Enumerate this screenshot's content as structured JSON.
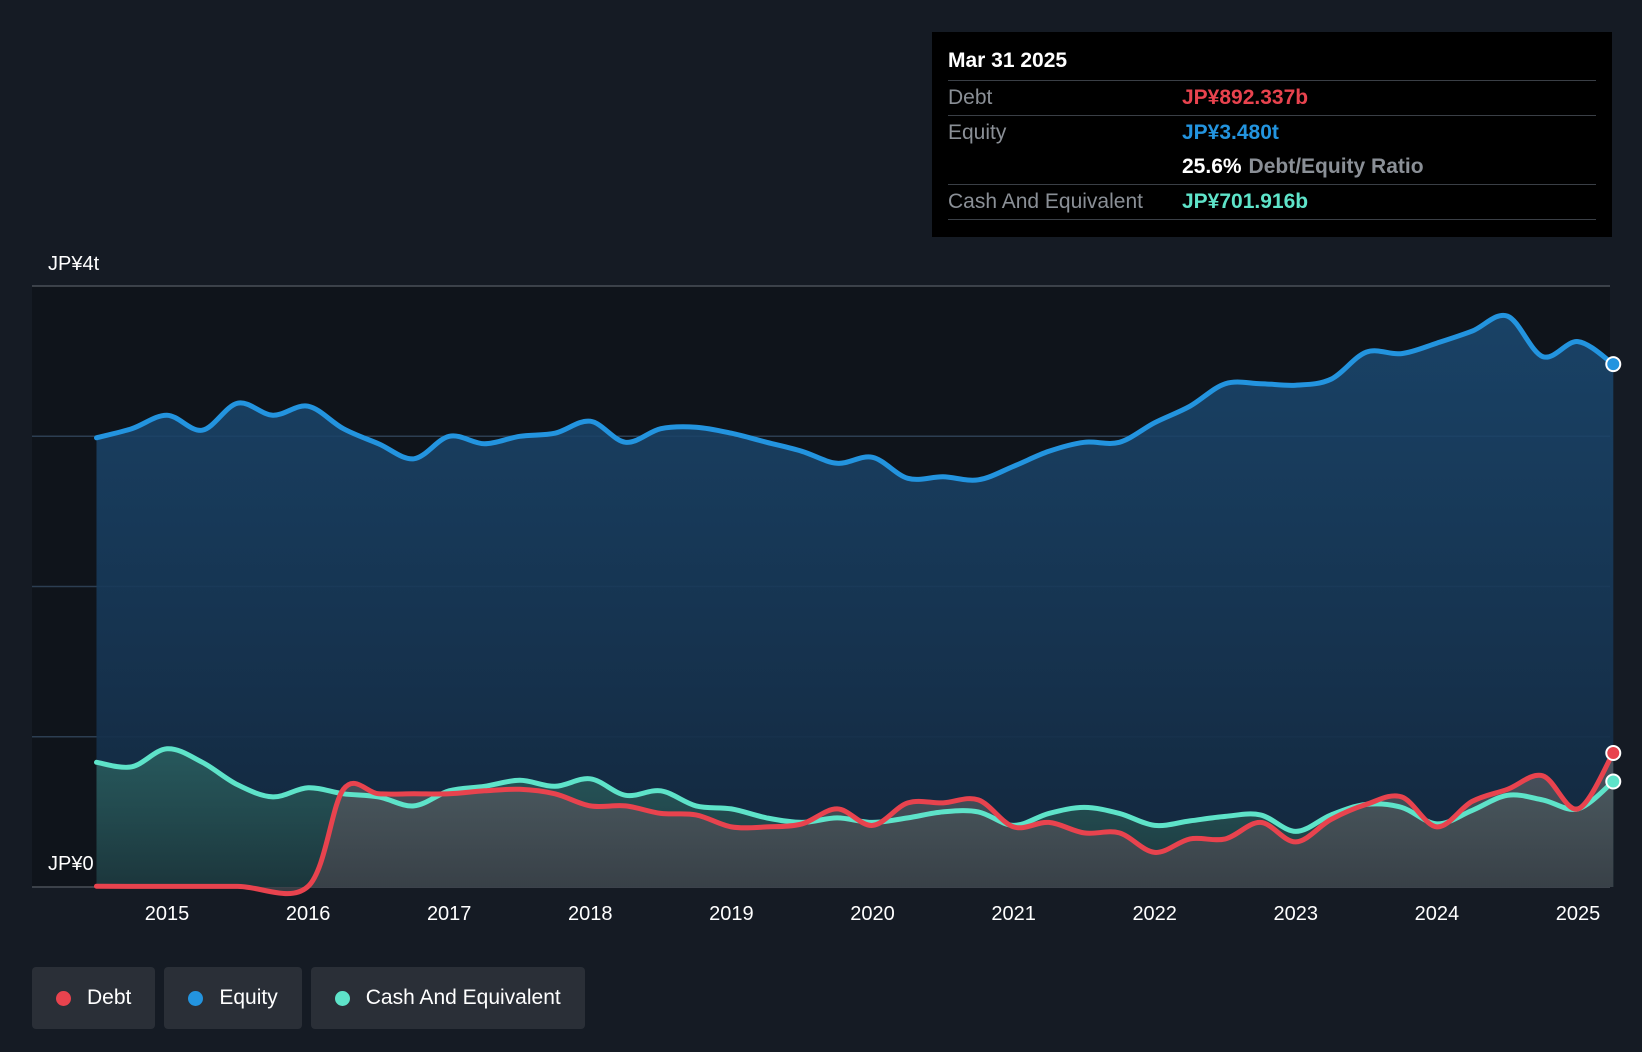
{
  "chart_data": {
    "type": "area",
    "y_axis": {
      "top_label": "JP¥4t",
      "bottom_label": "JP¥0",
      "ylim": [
        0,
        4000
      ],
      "unit": "JP¥b",
      "gridlines": [
        0,
        1000,
        2000,
        3000,
        4000
      ]
    },
    "x_axis": {
      "ticks": [
        "2015",
        "2016",
        "2017",
        "2018",
        "2019",
        "2020",
        "2021",
        "2022",
        "2023",
        "2024",
        "2025"
      ],
      "xlim": [
        2014.5,
        2025.25
      ]
    },
    "series": [
      {
        "name": "Debt",
        "color": "#e8434e",
        "points": [
          [
            2014.5,
            5
          ],
          [
            2015.0,
            4
          ],
          [
            2015.5,
            4
          ],
          [
            2016.0,
            4
          ],
          [
            2016.25,
            650
          ],
          [
            2016.5,
            620
          ],
          [
            2016.75,
            620
          ],
          [
            2017.0,
            620
          ],
          [
            2017.25,
            640
          ],
          [
            2017.5,
            650
          ],
          [
            2017.75,
            620
          ],
          [
            2018.0,
            540
          ],
          [
            2018.25,
            540
          ],
          [
            2018.5,
            490
          ],
          [
            2018.75,
            480
          ],
          [
            2019.0,
            400
          ],
          [
            2019.25,
            400
          ],
          [
            2019.5,
            420
          ],
          [
            2019.75,
            520
          ],
          [
            2020.0,
            410
          ],
          [
            2020.25,
            560
          ],
          [
            2020.5,
            560
          ],
          [
            2020.75,
            580
          ],
          [
            2021.0,
            400
          ],
          [
            2021.25,
            430
          ],
          [
            2021.5,
            360
          ],
          [
            2021.75,
            360
          ],
          [
            2022.0,
            230
          ],
          [
            2022.25,
            320
          ],
          [
            2022.5,
            320
          ],
          [
            2022.75,
            430
          ],
          [
            2023.0,
            300
          ],
          [
            2023.25,
            450
          ],
          [
            2023.5,
            550
          ],
          [
            2023.75,
            600
          ],
          [
            2024.0,
            400
          ],
          [
            2024.25,
            570
          ],
          [
            2024.5,
            650
          ],
          [
            2024.75,
            740
          ],
          [
            2025.0,
            520
          ],
          [
            2025.25,
            892
          ]
        ]
      },
      {
        "name": "Equity",
        "color": "#2394df",
        "points": [
          [
            2014.5,
            2990
          ],
          [
            2014.75,
            3050
          ],
          [
            2015.0,
            3140
          ],
          [
            2015.25,
            3040
          ],
          [
            2015.5,
            3220
          ],
          [
            2015.75,
            3140
          ],
          [
            2016.0,
            3200
          ],
          [
            2016.25,
            3050
          ],
          [
            2016.5,
            2950
          ],
          [
            2016.75,
            2850
          ],
          [
            2017.0,
            3000
          ],
          [
            2017.25,
            2950
          ],
          [
            2017.5,
            3000
          ],
          [
            2017.75,
            3020
          ],
          [
            2018.0,
            3100
          ],
          [
            2018.25,
            2960
          ],
          [
            2018.5,
            3050
          ],
          [
            2018.75,
            3060
          ],
          [
            2019.0,
            3020
          ],
          [
            2019.25,
            2960
          ],
          [
            2019.5,
            2900
          ],
          [
            2019.75,
            2820
          ],
          [
            2020.0,
            2860
          ],
          [
            2020.25,
            2720
          ],
          [
            2020.5,
            2730
          ],
          [
            2020.75,
            2710
          ],
          [
            2021.0,
            2800
          ],
          [
            2021.25,
            2900
          ],
          [
            2021.5,
            2960
          ],
          [
            2021.75,
            2960
          ],
          [
            2022.0,
            3090
          ],
          [
            2022.25,
            3200
          ],
          [
            2022.5,
            3350
          ],
          [
            2022.75,
            3350
          ],
          [
            2023.0,
            3340
          ],
          [
            2023.25,
            3380
          ],
          [
            2023.5,
            3560
          ],
          [
            2023.75,
            3550
          ],
          [
            2024.0,
            3620
          ],
          [
            2024.25,
            3700
          ],
          [
            2024.5,
            3800
          ],
          [
            2024.75,
            3530
          ],
          [
            2025.0,
            3630
          ],
          [
            2025.25,
            3480
          ]
        ]
      },
      {
        "name": "Cash And Equivalent",
        "color": "#5ee3c9",
        "points": [
          [
            2014.5,
            830
          ],
          [
            2014.75,
            800
          ],
          [
            2015.0,
            920
          ],
          [
            2015.25,
            830
          ],
          [
            2015.5,
            680
          ],
          [
            2015.75,
            600
          ],
          [
            2016.0,
            660
          ],
          [
            2016.25,
            620
          ],
          [
            2016.5,
            600
          ],
          [
            2016.75,
            540
          ],
          [
            2017.0,
            640
          ],
          [
            2017.25,
            670
          ],
          [
            2017.5,
            710
          ],
          [
            2017.75,
            670
          ],
          [
            2018.0,
            720
          ],
          [
            2018.25,
            610
          ],
          [
            2018.5,
            640
          ],
          [
            2018.75,
            540
          ],
          [
            2019.0,
            520
          ],
          [
            2019.25,
            460
          ],
          [
            2019.5,
            430
          ],
          [
            2019.75,
            460
          ],
          [
            2020.0,
            430
          ],
          [
            2020.25,
            460
          ],
          [
            2020.5,
            500
          ],
          [
            2020.75,
            500
          ],
          [
            2021.0,
            410
          ],
          [
            2021.25,
            490
          ],
          [
            2021.5,
            530
          ],
          [
            2021.75,
            490
          ],
          [
            2022.0,
            410
          ],
          [
            2022.25,
            440
          ],
          [
            2022.5,
            470
          ],
          [
            2022.75,
            480
          ],
          [
            2023.0,
            370
          ],
          [
            2023.25,
            480
          ],
          [
            2023.5,
            550
          ],
          [
            2023.75,
            530
          ],
          [
            2024.0,
            420
          ],
          [
            2024.25,
            510
          ],
          [
            2024.5,
            610
          ],
          [
            2024.75,
            580
          ],
          [
            2025.0,
            520
          ],
          [
            2025.25,
            702
          ]
        ]
      }
    ],
    "legend_placement": "bottom-left",
    "grid": true
  },
  "tooltip": {
    "date": "Mar 31 2025",
    "debt_label": "Debt",
    "debt_value": "JP¥892.337b",
    "equity_label": "Equity",
    "equity_value": "JP¥3.480t",
    "ratio_value": "25.6%",
    "ratio_label": "Debt/Equity Ratio",
    "cash_label": "Cash And Equivalent",
    "cash_value": "JP¥701.916b"
  },
  "legend": [
    {
      "label": "Debt",
      "color": "#e8434e"
    },
    {
      "label": "Equity",
      "color": "#2394df"
    },
    {
      "label": "Cash And Equivalent",
      "color": "#5ee3c9"
    }
  ]
}
